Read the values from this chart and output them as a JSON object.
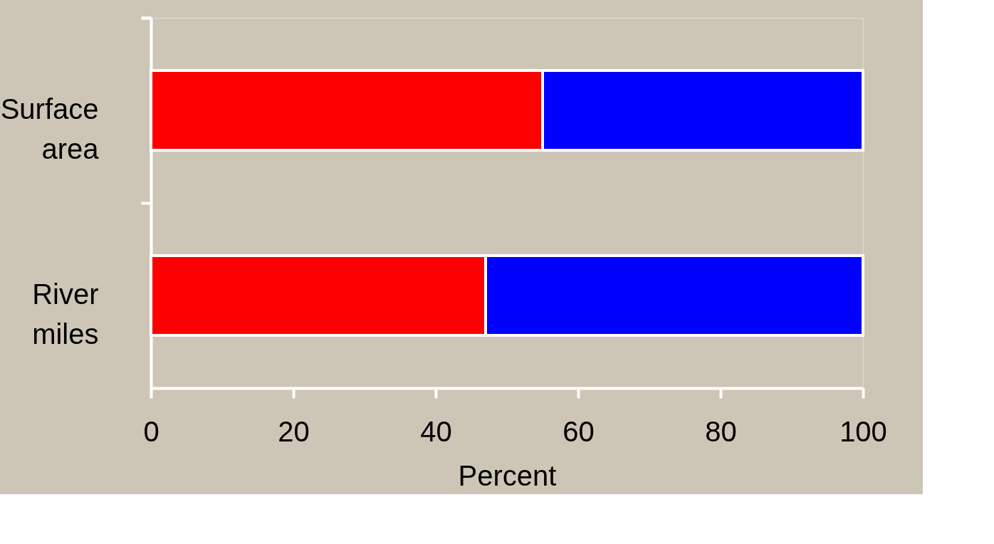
{
  "chart_data": {
    "type": "bar",
    "orientation": "horizontal",
    "stacked": true,
    "xlabel": "Percent",
    "categories": [
      "Surface area",
      "River miles"
    ],
    "series": [
      {
        "color": "#ff0000",
        "values": [
          55,
          47
        ]
      },
      {
        "color": "#0000ff",
        "values": [
          45,
          53
        ]
      }
    ],
    "xlim": [
      0,
      100
    ],
    "xticks": [
      0,
      20,
      40,
      60,
      80,
      100
    ],
    "grid": false,
    "legend": false
  }
}
